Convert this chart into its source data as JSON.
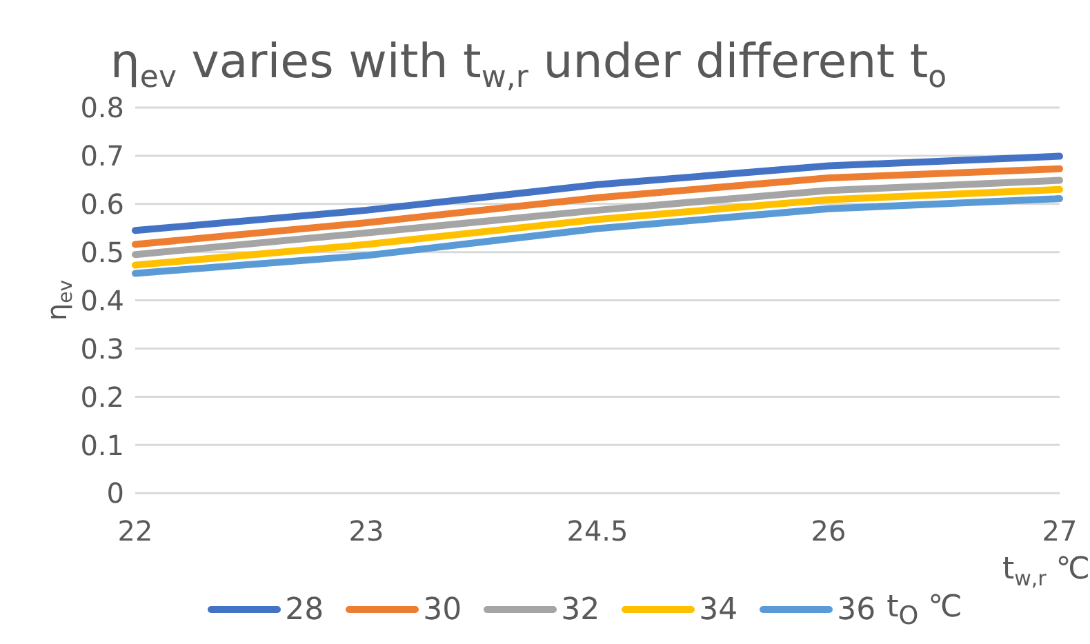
{
  "chart_data": {
    "type": "line",
    "title": "η$_{ev}$ varies with t$_{w,r}$ under different t$_{o}$",
    "ylabel": "η$_{ev}$",
    "xlabel": "t$_{w,r}$ ℃",
    "legend_title": "t$_{O}$ ℃",
    "categories": [
      "22",
      "23",
      "24.5",
      "26",
      "27"
    ],
    "series": [
      {
        "name": "28",
        "color": "#4472c4",
        "values": [
          0.545,
          0.587,
          0.64,
          0.679,
          0.699
        ]
      },
      {
        "name": "30",
        "color": "#ed7d31",
        "values": [
          0.516,
          0.561,
          0.613,
          0.654,
          0.673
        ]
      },
      {
        "name": "32",
        "color": "#a5a5a5",
        "values": [
          0.495,
          0.54,
          0.587,
          0.628,
          0.649
        ]
      },
      {
        "name": "34",
        "color": "#ffc000",
        "values": [
          0.473,
          0.516,
          0.568,
          0.609,
          0.63
        ]
      },
      {
        "name": "36",
        "color": "#5b9bd5",
        "values": [
          0.456,
          0.493,
          0.549,
          0.59,
          0.611
        ]
      }
    ],
    "ylim": [
      0,
      0.8
    ],
    "yticks": [
      0,
      0.1,
      0.2,
      0.3,
      0.4,
      0.5,
      0.6,
      0.7,
      0.8
    ],
    "grid": "y",
    "legend": "bottom",
    "marker": "none",
    "line_style": "solid"
  }
}
